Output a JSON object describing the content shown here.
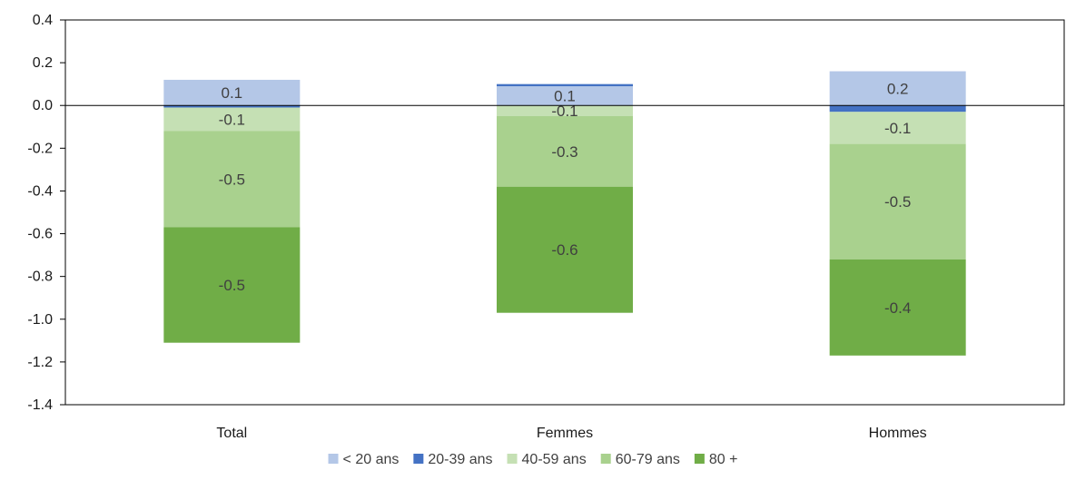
{
  "chart_data": {
    "type": "bar",
    "stacked": true,
    "categories": [
      "Total",
      "Femmes",
      "Hommes"
    ],
    "series": [
      {
        "name": "< 20 ans",
        "color": "#b4c7e7",
        "values": [
          0.12,
          0.09,
          0.16
        ],
        "labels": [
          "0.1",
          "0.1",
          "0.2"
        ]
      },
      {
        "name": "20-39 ans",
        "color": "#4472c4",
        "values": [
          -0.01,
          0.01,
          -0.03
        ],
        "labels": [
          "",
          "",
          ""
        ]
      },
      {
        "name": "40-59 ans",
        "color": "#c5e0b4",
        "values": [
          -0.11,
          -0.05,
          -0.15
        ],
        "labels": [
          "-0.1",
          "-0.1",
          "-0.1"
        ]
      },
      {
        "name": "60-79 ans",
        "color": "#a9d18e",
        "values": [
          -0.45,
          -0.33,
          -0.54
        ],
        "labels": [
          "-0.5",
          "-0.3",
          "-0.5"
        ]
      },
      {
        "name": "80 +",
        "color": "#70ad47",
        "values": [
          -0.54,
          -0.59,
          -0.45
        ],
        "labels": [
          "-0.5",
          "-0.6",
          "-0.4"
        ]
      }
    ],
    "ylim": [
      -1.4,
      0.4
    ],
    "yticks": [
      "0.4",
      "0.2",
      "0.0",
      "-0.2",
      "-0.4",
      "-0.6",
      "-0.8",
      "-1.0",
      "-1.2",
      "-1.4"
    ],
    "ytick_values": [
      0.4,
      0.2,
      0.0,
      -0.2,
      -0.4,
      -0.6,
      -0.8,
      -1.0,
      -1.2,
      -1.4
    ],
    "grid": false,
    "legend_position": "bottom"
  }
}
